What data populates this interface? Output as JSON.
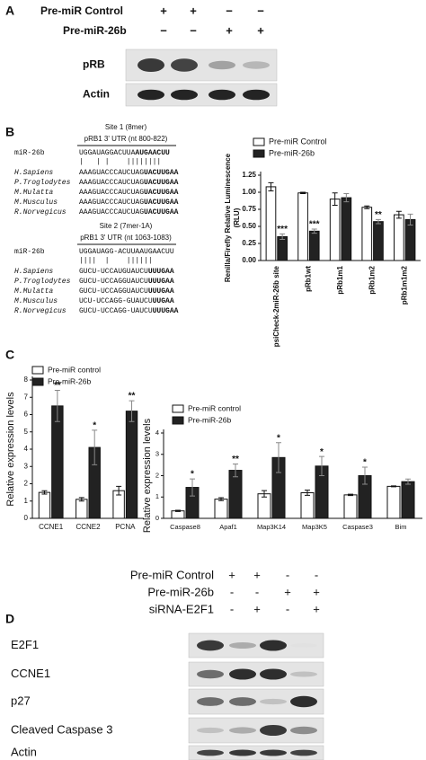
{
  "panel_a": {
    "label": "A",
    "rows": [
      {
        "name": "Pre-miR Control",
        "signs": [
          "+",
          "+",
          "−",
          "−"
        ]
      },
      {
        "name": "Pre-miR-26b",
        "signs": [
          "−",
          "−",
          "+",
          "+"
        ]
      }
    ],
    "blots": [
      "pRB",
      "Actin"
    ]
  },
  "panel_b": {
    "label": "B",
    "sites": [
      {
        "title": "Site 1 (8mer)",
        "utr": "pRB1 3' UTR (nt 800-822)",
        "mirna_name": "miR-26b",
        "mirna": "UGGAUAGGACUUA",
        "mirna_bold": "AUGAACUU",
        "pairs": "|   | |    ||||||||",
        "rows": [
          {
            "species": "H.Sapiens",
            "seq": "AAAGUACCCAUCUAG",
            "seed": "UACUUGAA"
          },
          {
            "species": "P.Troglodytes",
            "seq": "AAAGUACCCAUCUAG",
            "seed": "UACUUGAA"
          },
          {
            "species": "M.Mulatta",
            "seq": "AAAGUACCCAUCUAG",
            "seed": "UACUUGAA"
          },
          {
            "species": "M.Musculus",
            "seq": "AAAGUACCCAUCUAG",
            "seed": "UACUUGAA"
          },
          {
            "species": "R.Norvegicus",
            "seq": "AAAGUACCCAUCUAG",
            "seed": "UACUUGAA"
          }
        ]
      },
      {
        "title": "Site 2 (7mer-1A)",
        "utr": "pRB1 3' UTR (nt 1063-1083)",
        "mirna_name": "miR-26b",
        "mirna": "UGGAUAGG-ACUUAAUGAACUU",
        "pairs": "||||  |    ||||||",
        "rows": [
          {
            "species": "H.Sapiens",
            "seq": "GUCU-UCCAUGUAUCU",
            "seed": "UUUGAA"
          },
          {
            "species": "P.Troglodytes",
            "seq": "GUCU-UCCAGGUAUCU",
            "seed": "UUUGAA"
          },
          {
            "species": "M.Mulatta",
            "seq": "GUCU-UCCAGGUAUCU",
            "seed": "UUUGAA"
          },
          {
            "species": "M.Musculus",
            "seq": "UCU-UCCAGG-GUAUCU",
            "seed": "UUGAA"
          },
          {
            "species": "R.Norvegicus",
            "seq": "GUCU-UCCAGG-UAUCU",
            "seed": "UUUGAA"
          }
        ]
      }
    ]
  },
  "panel_c": {
    "label": "C"
  },
  "chart_data": [
    {
      "type": "bar",
      "ylabel": [
        "Renilla/Firefly Relative Luminescence",
        "(RLU)"
      ],
      "categories": [
        "psiCheck-2miR-26b site",
        "pRb1wt",
        "pRb1m1",
        "pRb1m2",
        "pRb1m1m2"
      ],
      "series": [
        {
          "name": "Pre-miR Control",
          "color": "#ffffff",
          "values": [
            1.08,
            0.99,
            0.9,
            0.78,
            0.67
          ],
          "errors": [
            0.06,
            0.01,
            0.09,
            0.02,
            0.05
          ]
        },
        {
          "name": "Pre-miR-26b",
          "color": "#222222",
          "values": [
            0.35,
            0.43,
            0.92,
            0.57,
            0.6
          ],
          "errors": [
            0.04,
            0.03,
            0.06,
            0.03,
            0.08
          ],
          "significance": [
            "***",
            "***",
            null,
            "**",
            null
          ]
        }
      ],
      "ylim": [
        0,
        1.25
      ],
      "yticks": [
        {
          "value": 0,
          "label": "0.00"
        },
        0.25,
        {
          "value": 0.5,
          "label": "0.50"
        },
        0.75,
        {
          "value": 1,
          "label": "1.00"
        },
        1.25
      ]
    },
    {
      "type": "bar",
      "ylabel": "Relative expression levels",
      "categories": [
        "CCNE1",
        "CCNE2",
        "PCNA"
      ],
      "series": [
        {
          "name": "Pre-miR control",
          "color": "#ffffff",
          "values": [
            1.5,
            1.1,
            1.6
          ],
          "errors": [
            0.1,
            0.1,
            0.25
          ]
        },
        {
          "name": "Pre-miR-26b",
          "color": "#222222",
          "values": [
            6.5,
            4.1,
            6.2
          ],
          "errors": [
            0.9,
            1.0,
            0.6
          ],
          "significance": [
            "**",
            "*",
            "**"
          ]
        }
      ],
      "ylim": [
        0,
        8
      ],
      "yticks": [
        0,
        1,
        2,
        3,
        4,
        5,
        6,
        7,
        8
      ]
    },
    {
      "type": "bar",
      "ylabel": "Relative expression levels",
      "categories": [
        "Caspase8",
        "Apaf1",
        "Map3K14",
        "Map3K5",
        "Caspase3",
        "Bim"
      ],
      "series": [
        {
          "name": "Pre-miR control",
          "color": "#ffffff",
          "values": [
            0.35,
            0.9,
            1.15,
            1.2,
            1.1,
            1.5
          ],
          "errors": [
            0.03,
            0.07,
            0.15,
            0.12,
            0.03,
            0.02
          ]
        },
        {
          "name": "Pre-miR-26b",
          "color": "#222222",
          "values": [
            1.45,
            2.25,
            2.85,
            2.45,
            2.0,
            1.72
          ],
          "errors": [
            0.4,
            0.3,
            0.7,
            0.45,
            0.4,
            0.12
          ],
          "significance": [
            "*",
            "**",
            "*",
            "*",
            "*",
            null
          ]
        }
      ],
      "ylim": [
        0,
        4
      ],
      "yticks": [
        0,
        1,
        2,
        3,
        4
      ]
    }
  ],
  "panel_d": {
    "label": "D",
    "rows": [
      {
        "name": "Pre-miR Control",
        "signs": [
          "+",
          "+",
          "-",
          "-"
        ]
      },
      {
        "name": "Pre-miR-26b",
        "signs": [
          "-",
          "-",
          "+",
          "+"
        ]
      },
      {
        "name": "siRNA-E2F1",
        "signs": [
          "-",
          "+",
          "-",
          "+"
        ]
      }
    ],
    "blots": [
      "E2F1",
      "CCNE1",
      "p27",
      "Cleaved Caspase 3",
      "Actin"
    ]
  }
}
